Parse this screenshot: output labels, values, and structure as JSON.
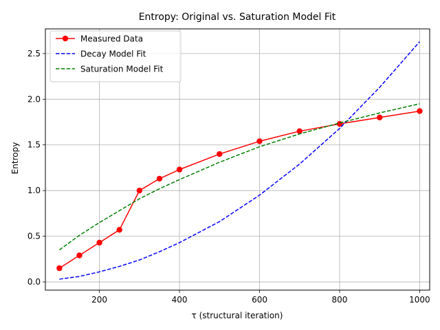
{
  "chart_data": {
    "type": "line",
    "title": "Entropy: Original vs. Saturation Model Fit",
    "xlabel": "τ (structural iteration)",
    "ylabel": "Entropy",
    "xlim": [
      65,
      1025
    ],
    "ylim": [
      -0.09,
      2.77
    ],
    "xticks": [
      200,
      400,
      600,
      800,
      1000
    ],
    "xtick_labels": [
      "200",
      "400",
      "600",
      "800",
      "1000"
    ],
    "yticks": [
      0.0,
      0.5,
      1.0,
      1.5,
      2.0,
      2.5
    ],
    "ytick_labels": [
      "0.0",
      "0.5",
      "1.0",
      "1.5",
      "2.0",
      "2.5"
    ],
    "grid": true,
    "legend_position": "top-left",
    "series": [
      {
        "name": "Measured Data",
        "style": "solid-markers",
        "color": "#ff0000",
        "x": [
          100,
          150,
          200,
          250,
          300,
          350,
          400,
          500,
          600,
          700,
          800,
          900,
          1000
        ],
        "y": [
          0.15,
          0.29,
          0.43,
          0.57,
          1.0,
          1.13,
          1.23,
          1.4,
          1.54,
          1.65,
          1.73,
          1.8,
          1.87
        ]
      },
      {
        "name": "Decay Model Fit",
        "style": "dashed",
        "color": "#0000ff",
        "x": [
          100,
          150,
          200,
          250,
          300,
          350,
          400,
          500,
          600,
          700,
          800,
          900,
          1000
        ],
        "y": [
          0.03,
          0.06,
          0.11,
          0.17,
          0.24,
          0.33,
          0.43,
          0.66,
          0.95,
          1.29,
          1.68,
          2.13,
          2.63
        ]
      },
      {
        "name": "Saturation Model Fit",
        "style": "dashed",
        "color": "#008000",
        "x": [
          100,
          150,
          200,
          250,
          300,
          350,
          400,
          500,
          600,
          700,
          800,
          900,
          1000
        ],
        "y": [
          0.35,
          0.51,
          0.65,
          0.78,
          0.91,
          1.02,
          1.12,
          1.31,
          1.48,
          1.62,
          1.74,
          1.85,
          1.95
        ]
      }
    ]
  }
}
